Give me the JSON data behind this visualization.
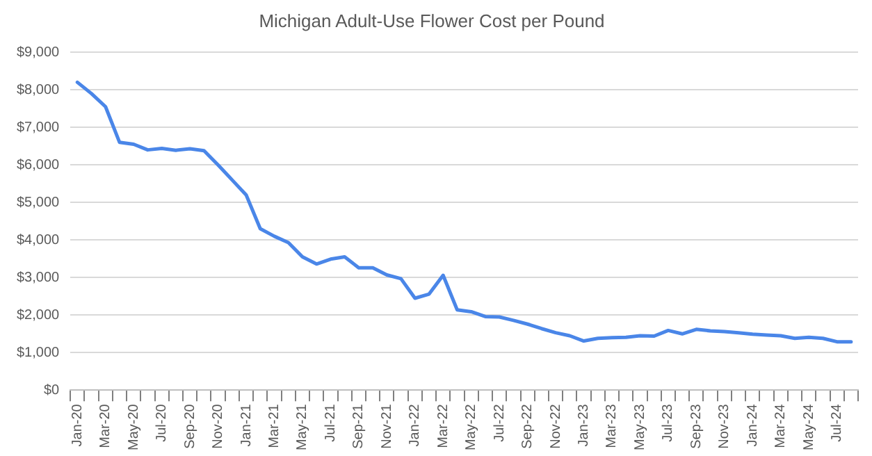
{
  "chart_data": {
    "type": "line",
    "title": "Michigan Adult-Use Flower Cost per Pound",
    "categories": [
      "Jan-20",
      null,
      "Mar-20",
      null,
      "May-20",
      null,
      "Jul-20",
      null,
      "Sep-20",
      null,
      "Nov-20",
      null,
      "Jan-21",
      null,
      "Mar-21",
      null,
      "May-21",
      null,
      "Jul-21",
      null,
      "Sep-21",
      null,
      "Nov-21",
      null,
      "Jan-22",
      null,
      "Mar-22",
      null,
      "May-22",
      null,
      "Jul-22",
      null,
      "Sep-22",
      null,
      "Nov-22",
      null,
      "Jan-23",
      null,
      "Mar-23",
      null,
      "May-23",
      null,
      "Jul-23",
      null,
      "Sep-23",
      null,
      "Nov-23",
      null,
      "Jan-24",
      null,
      "Mar-24",
      null,
      "May-24",
      null,
      "Jul-24",
      null
    ],
    "series": [
      {
        "color": "#4a86e8",
        "values": [
          8200,
          7900,
          7550,
          6600,
          6550,
          6400,
          6440,
          6390,
          6430,
          6380,
          6000,
          5600,
          5200,
          4300,
          4100,
          3930,
          3550,
          3360,
          3490,
          3550,
          3260,
          3260,
          3070,
          2970,
          2450,
          2560,
          3060,
          2140,
          2090,
          1960,
          1950,
          1860,
          1760,
          1640,
          1530,
          1450,
          1310,
          1380,
          1400,
          1410,
          1450,
          1440,
          1590,
          1500,
          1620,
          1580,
          1560,
          1530,
          1490,
          1470,
          1450,
          1380,
          1410,
          1380,
          1290,
          1290
        ]
      }
    ],
    "ylim": [
      0,
      9000
    ],
    "yticks": [
      {
        "value": 0,
        "label": "$0"
      },
      {
        "value": 1000,
        "label": "$1,000"
      },
      {
        "value": 2000,
        "label": "$2,000"
      },
      {
        "value": 3000,
        "label": "$3,000"
      },
      {
        "value": 4000,
        "label": "$4,000"
      },
      {
        "value": 5000,
        "label": "$5,000"
      },
      {
        "value": 6000,
        "label": "$6,000"
      },
      {
        "value": 7000,
        "label": "$7,000"
      },
      {
        "value": 8000,
        "label": "$8,000"
      },
      {
        "value": 9000,
        "label": "$9,000"
      }
    ],
    "grid": "y",
    "legend": false,
    "marker": "none",
    "line_style": "solid"
  }
}
